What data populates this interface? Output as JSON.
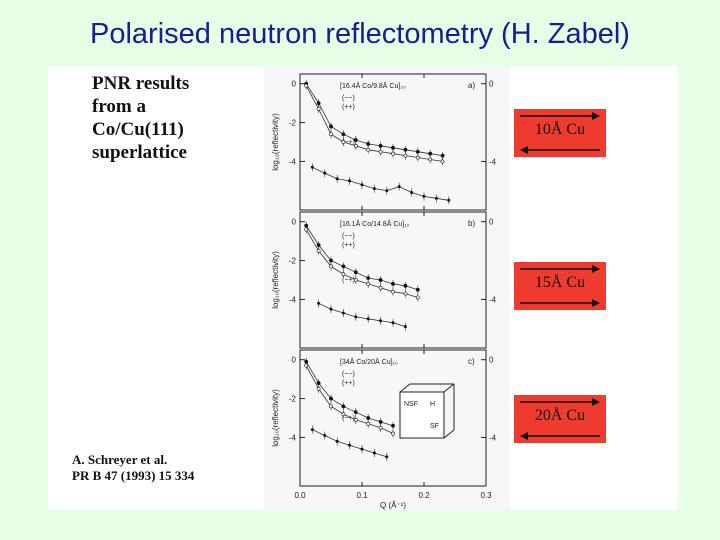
{
  "slide": {
    "title": "Polarised neutron reflectometry (H. Zabel)"
  },
  "caption": {
    "lines": [
      "PNR results",
      "from a",
      "Co/Cu(111)",
      "superlattice"
    ]
  },
  "citation": {
    "lines": [
      "A. Schreyer et al.",
      "PR B 47 (1993) 15 334"
    ]
  },
  "cu_boxes": [
    {
      "label": "10Å Cu",
      "coupling": "antiparallel"
    },
    {
      "label": "15Å Cu",
      "coupling": "parallel"
    },
    {
      "label": "20Å Cu",
      "coupling": "antiparallel"
    }
  ],
  "colors": {
    "background": "#e6ffe6",
    "title": "#1a1a9a",
    "cu_box": "#ee3b2e",
    "arrow": "#111111"
  },
  "chart_data": {
    "type": "scatter",
    "xlabel": "Q (Å⁻¹)",
    "x_ticks": [
      "0.0",
      "0.1",
      "0.2",
      "0.3"
    ],
    "xlim": [
      0.0,
      0.3
    ],
    "panels": [
      {
        "sample": "[16.4Å Co/9.8Å Cu]₂₀",
        "tag": "a)",
        "ylabel": "log₁₀(reflectivity)",
        "y_ticks_left": [
          "0",
          "-2",
          "-4"
        ],
        "y_ticks_right": [
          "0",
          "-4"
        ],
        "legend": [
          "(−−)",
          "(++)",
          "(−+)"
        ],
        "series": [
          {
            "name": "(−−)",
            "x": [
              0.01,
              0.03,
              0.05,
              0.07,
              0.09,
              0.11,
              0.13,
              0.15,
              0.17,
              0.19,
              0.21,
              0.23
            ],
            "y": [
              0.0,
              -1.0,
              -2.2,
              -2.6,
              -2.9,
              -3.1,
              -3.2,
              -3.3,
              -3.4,
              -3.5,
              -3.6,
              -3.7
            ]
          },
          {
            "name": "(++)",
            "x": [
              0.01,
              0.03,
              0.05,
              0.07,
              0.09,
              0.11,
              0.13,
              0.15,
              0.17,
              0.19,
              0.21,
              0.23
            ],
            "y": [
              -0.1,
              -1.3,
              -2.6,
              -3.0,
              -3.2,
              -3.4,
              -3.5,
              -3.6,
              -3.7,
              -3.8,
              -3.9,
              -4.0
            ]
          },
          {
            "name": "(−+)",
            "x": [
              0.02,
              0.04,
              0.06,
              0.08,
              0.1,
              0.12,
              0.14,
              0.16,
              0.18,
              0.2,
              0.22,
              0.24
            ],
            "y": [
              -4.3,
              -4.6,
              -4.9,
              -5.0,
              -5.2,
              -5.4,
              -5.5,
              -5.3,
              -5.6,
              -5.8,
              -5.9,
              -6.0
            ]
          }
        ]
      },
      {
        "sample": "[16.1Å Co/14.8Å Cu]₁₂",
        "tag": "b)",
        "ylabel": "log₁₀(reflectivity)",
        "y_ticks_left": [
          "0",
          "-2",
          "-4"
        ],
        "y_ticks_right": [
          "0",
          "-4"
        ],
        "legend": [
          "(−−)",
          "(++)",
          "(−+)"
        ],
        "series": [
          {
            "name": "(−−)",
            "x": [
              0.01,
              0.03,
              0.05,
              0.07,
              0.09,
              0.11,
              0.13,
              0.15,
              0.17,
              0.19
            ],
            "y": [
              -0.2,
              -1.2,
              -2.0,
              -2.3,
              -2.6,
              -2.9,
              -3.0,
              -3.2,
              -3.3,
              -3.5
            ]
          },
          {
            "name": "(++)",
            "x": [
              0.01,
              0.03,
              0.05,
              0.07,
              0.09,
              0.11,
              0.13,
              0.15,
              0.17,
              0.19
            ],
            "y": [
              -0.4,
              -1.5,
              -2.3,
              -2.7,
              -3.0,
              -3.2,
              -3.4,
              -3.6,
              -3.7,
              -3.9
            ]
          },
          {
            "name": "(−+)",
            "x": [
              0.03,
              0.05,
              0.07,
              0.09,
              0.11,
              0.13,
              0.15,
              0.17
            ],
            "y": [
              -4.2,
              -4.5,
              -4.7,
              -4.9,
              -5.0,
              -5.1,
              -5.2,
              -5.4
            ]
          }
        ]
      },
      {
        "sample": "[34Å Co/20Å Cu]₁₀",
        "tag": "c)",
        "ylabel": "log₁₀(reflectivity)",
        "y_ticks_left": [
          "0",
          "-2",
          "-4"
        ],
        "y_ticks_right": [
          "0",
          "-4"
        ],
        "legend": [
          "(−−)",
          "(++)",
          "(−+)"
        ],
        "inset_labels": [
          "NSF",
          "H",
          "SF"
        ],
        "series": [
          {
            "name": "(−−)",
            "x": [
              0.01,
              0.03,
              0.05,
              0.07,
              0.09,
              0.11,
              0.13,
              0.15
            ],
            "y": [
              -0.1,
              -1.2,
              -2.0,
              -2.4,
              -2.7,
              -3.0,
              -3.2,
              -3.4
            ]
          },
          {
            "name": "(++)",
            "x": [
              0.01,
              0.03,
              0.05,
              0.07,
              0.09,
              0.11,
              0.13,
              0.15
            ],
            "y": [
              -0.3,
              -1.5,
              -2.4,
              -2.8,
              -3.1,
              -3.3,
              -3.5,
              -3.8
            ]
          },
          {
            "name": "(−+)",
            "x": [
              0.02,
              0.04,
              0.06,
              0.08,
              0.1,
              0.12,
              0.14
            ],
            "y": [
              -3.6,
              -3.9,
              -4.2,
              -4.4,
              -4.6,
              -4.8,
              -5.0
            ]
          }
        ]
      }
    ]
  }
}
